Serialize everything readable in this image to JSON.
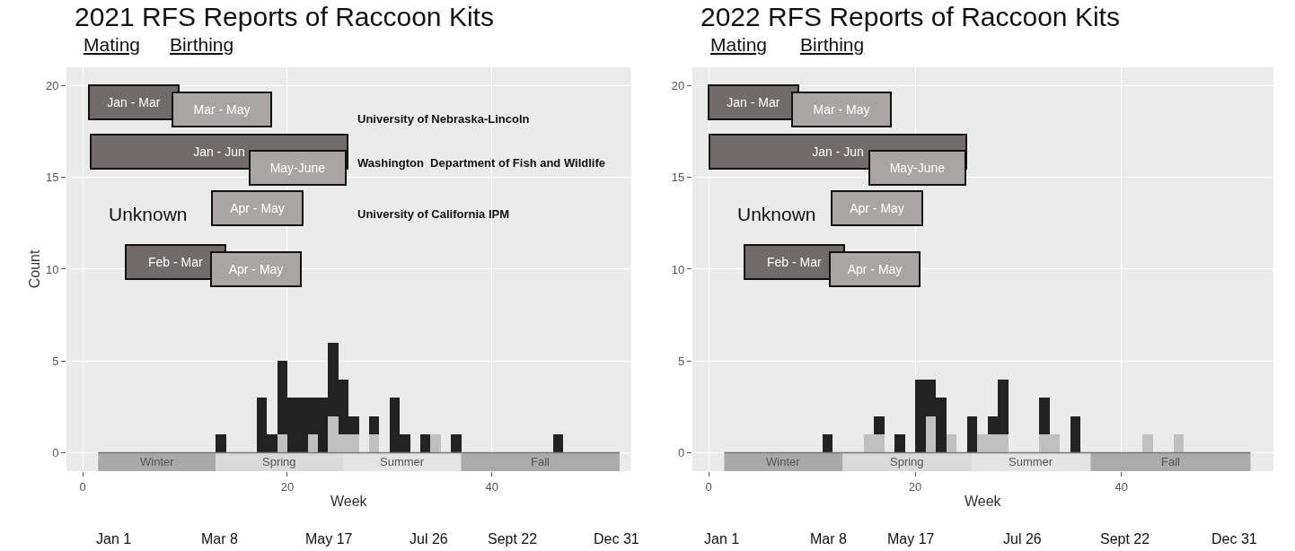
{
  "chart_data": [
    {
      "type": "bar",
      "stacked": true,
      "title": "2021 RFS Reports of Raccoon Kits",
      "xlabel": "Week",
      "ylabel": "Count",
      "x": [
        13.5,
        17.5,
        18.5,
        19.5,
        20.5,
        21.5,
        22.5,
        23.5,
        24.5,
        25.5,
        26.5,
        28.5,
        30.5,
        31.5,
        33.5,
        34.5,
        36.5,
        46.5
      ],
      "series": [
        {
          "color": "#c0c0c0",
          "values": [
            0,
            0,
            0,
            1,
            0,
            0,
            1,
            0,
            2,
            1,
            1,
            1,
            0,
            0,
            0,
            1,
            0,
            0
          ]
        },
        {
          "color": "#222222",
          "values": [
            1,
            3,
            1,
            4,
            3,
            3,
            2,
            3,
            4,
            3,
            1,
            1,
            3,
            1,
            1,
            0,
            1,
            1
          ]
        }
      ],
      "xlim": [
        -1.6,
        53.6
      ],
      "ylim": [
        -1,
        21
      ],
      "xticks": [
        0,
        20,
        40
      ],
      "yticks": [
        0,
        5,
        10,
        15,
        20
      ],
      "grid": true,
      "bands": [
        {
          "axis": "x",
          "from": 1.5,
          "to": 13,
          "label": "Winter",
          "color": "#a9a9a9"
        },
        {
          "axis": "x",
          "from": 13,
          "to": 25.5,
          "label": "Spring",
          "color": "#dadada"
        },
        {
          "axis": "x",
          "from": 25.5,
          "to": 37,
          "label": "Summer",
          "color": "#e4e4e4"
        },
        {
          "axis": "x",
          "from": 37,
          "to": 52.5,
          "label": "Fall",
          "color": "#ababab"
        }
      ],
      "ref_lines": [
        {
          "axis": "y",
          "value": 0,
          "color": "#777777"
        }
      ],
      "annotations": [
        "Mating",
        "Birthing",
        "Unknown",
        "University of Nebraska-Lincoln",
        "Washington  Department of Fish and Wildlife",
        "University of California IPM",
        "Jan - Mar",
        "Mar - May",
        "Jan - Jun",
        "May-June",
        "Apr - May",
        "Feb - Mar",
        "Apr - May",
        "Jan 1",
        "Mar 8",
        "May 17",
        "Jul 26",
        "Sept 22",
        "Dec 31"
      ]
    },
    {
      "type": "bar",
      "stacked": true,
      "title": "2022 RFS Reports of Raccoon Kits",
      "xlabel": "Week",
      "x": [
        11.5,
        15.5,
        16.5,
        18.5,
        20.5,
        21.5,
        22.5,
        23.5,
        25.5,
        26.5,
        27.5,
        28.5,
        32.5,
        33.5,
        35.5,
        42.5,
        45.5
      ],
      "series": [
        {
          "color": "#c0c0c0",
          "values": [
            0,
            1,
            1,
            0,
            0,
            2,
            0,
            1,
            0,
            1,
            1,
            1,
            1,
            1,
            0,
            1,
            1
          ]
        },
        {
          "color": "#222222",
          "values": [
            1,
            0,
            1,
            1,
            4,
            2,
            3,
            0,
            2,
            0,
            1,
            3,
            2,
            0,
            2,
            0,
            0
          ]
        }
      ],
      "xlim": [
        -1.6,
        54.7
      ],
      "ylim": [
        -1,
        21
      ],
      "xticks": [
        0,
        20,
        40
      ],
      "yticks": [
        0,
        5,
        10,
        15,
        20
      ],
      "grid": true,
      "bands": [
        {
          "axis": "x",
          "from": 1.5,
          "to": 13,
          "label": "Winter",
          "color": "#a9a9a9"
        },
        {
          "axis": "x",
          "from": 13,
          "to": 25.5,
          "label": "Spring",
          "color": "#dadada"
        },
        {
          "axis": "x",
          "from": 25.5,
          "to": 37,
          "label": "Summer",
          "color": "#e4e4e4"
        },
        {
          "axis": "x",
          "from": 37,
          "to": 52.5,
          "label": "Fall",
          "color": "#ababab"
        }
      ],
      "ref_lines": [
        {
          "axis": "y",
          "value": 0,
          "color": "#777777"
        }
      ],
      "annotations": [
        "Mating",
        "Birthing",
        "Unknown",
        "Jan - Mar",
        "Mar - May",
        "Jan - Jun",
        "May-June",
        "Apr - May",
        "Feb - Mar",
        "Apr - May",
        "Jan 1",
        "Mar 8",
        "May 17",
        "Jul 26",
        "Sept 22",
        "Dec 31"
      ]
    }
  ]
}
